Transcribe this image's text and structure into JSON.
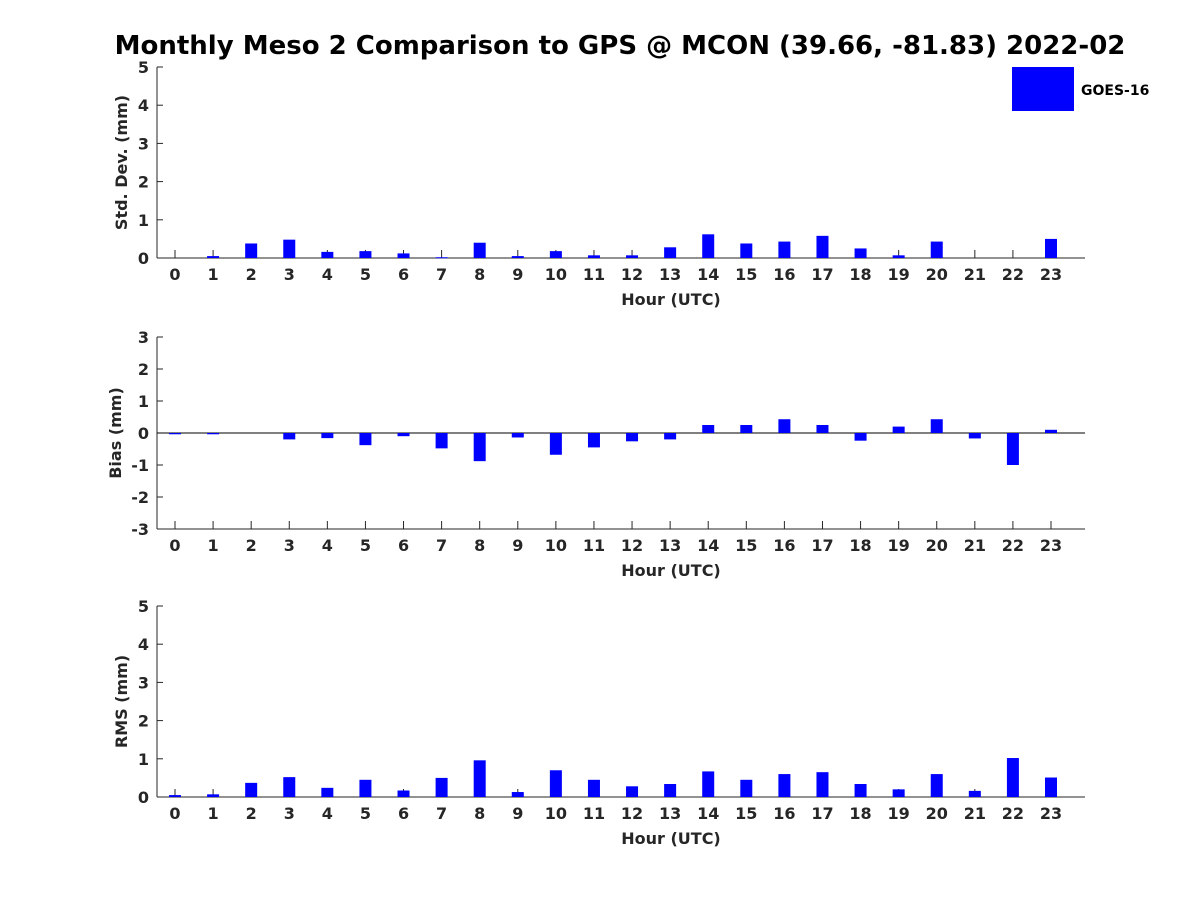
{
  "title": "Monthly Meso 2 Comparison to GPS @ MCON (39.66, -81.83) 2022-02",
  "colors": {
    "bar": "#0000ff",
    "axis": "#262626"
  },
  "legend": {
    "label": "GOES-16",
    "placement": "top-right"
  },
  "chart_data": [
    {
      "type": "bar",
      "xlabel": "Hour (UTC)",
      "ylabel": "Std. Dev. (mm)",
      "ylim": [
        0,
        5
      ],
      "yticks": [
        0,
        1,
        2,
        3,
        4,
        5
      ],
      "categories": [
        "0",
        "1",
        "2",
        "3",
        "4",
        "5",
        "6",
        "7",
        "8",
        "9",
        "10",
        "11",
        "12",
        "13",
        "14",
        "15",
        "16",
        "17",
        "18",
        "19",
        "20",
        "21",
        "22",
        "23"
      ],
      "series": [
        {
          "name": "GOES-16",
          "values": [
            0,
            0.05,
            0.38,
            0.48,
            0.16,
            0.18,
            0.12,
            0.02,
            0.4,
            0.05,
            0.18,
            0.07,
            0.07,
            0.28,
            0.62,
            0.38,
            0.43,
            0.58,
            0.25,
            0.07,
            0.43,
            0,
            0,
            0.5
          ]
        }
      ]
    },
    {
      "type": "bar",
      "xlabel": "Hour (UTC)",
      "ylabel": "Bias (mm)",
      "ylim": [
        -3,
        3
      ],
      "yticks": [
        -3,
        -2,
        -1,
        0,
        1,
        2,
        3
      ],
      "categories": [
        "0",
        "1",
        "2",
        "3",
        "4",
        "5",
        "6",
        "7",
        "8",
        "9",
        "10",
        "11",
        "12",
        "13",
        "14",
        "15",
        "16",
        "17",
        "18",
        "19",
        "20",
        "21",
        "22",
        "23"
      ],
      "series": [
        {
          "name": "GOES-16",
          "values": [
            -0.04,
            -0.04,
            0,
            -0.2,
            -0.16,
            -0.38,
            -0.1,
            -0.48,
            -0.88,
            -0.14,
            -0.68,
            -0.45,
            -0.26,
            -0.2,
            0.25,
            0.25,
            0.43,
            0.25,
            -0.24,
            0.2,
            0.43,
            -0.17,
            -1.0,
            0.1
          ]
        }
      ]
    },
    {
      "type": "bar",
      "xlabel": "Hour (UTC)",
      "ylabel": "RMS (mm)",
      "ylim": [
        0,
        5
      ],
      "yticks": [
        0,
        1,
        2,
        3,
        4,
        5
      ],
      "categories": [
        "0",
        "1",
        "2",
        "3",
        "4",
        "5",
        "6",
        "7",
        "8",
        "9",
        "10",
        "11",
        "12",
        "13",
        "14",
        "15",
        "16",
        "17",
        "18",
        "19",
        "20",
        "21",
        "22",
        "23"
      ],
      "series": [
        {
          "name": "GOES-16",
          "values": [
            0.05,
            0.07,
            0.37,
            0.52,
            0.24,
            0.45,
            0.17,
            0.5,
            0.96,
            0.13,
            0.7,
            0.45,
            0.28,
            0.34,
            0.67,
            0.45,
            0.6,
            0.65,
            0.34,
            0.2,
            0.6,
            0.16,
            1.02,
            0.51
          ]
        }
      ]
    }
  ]
}
